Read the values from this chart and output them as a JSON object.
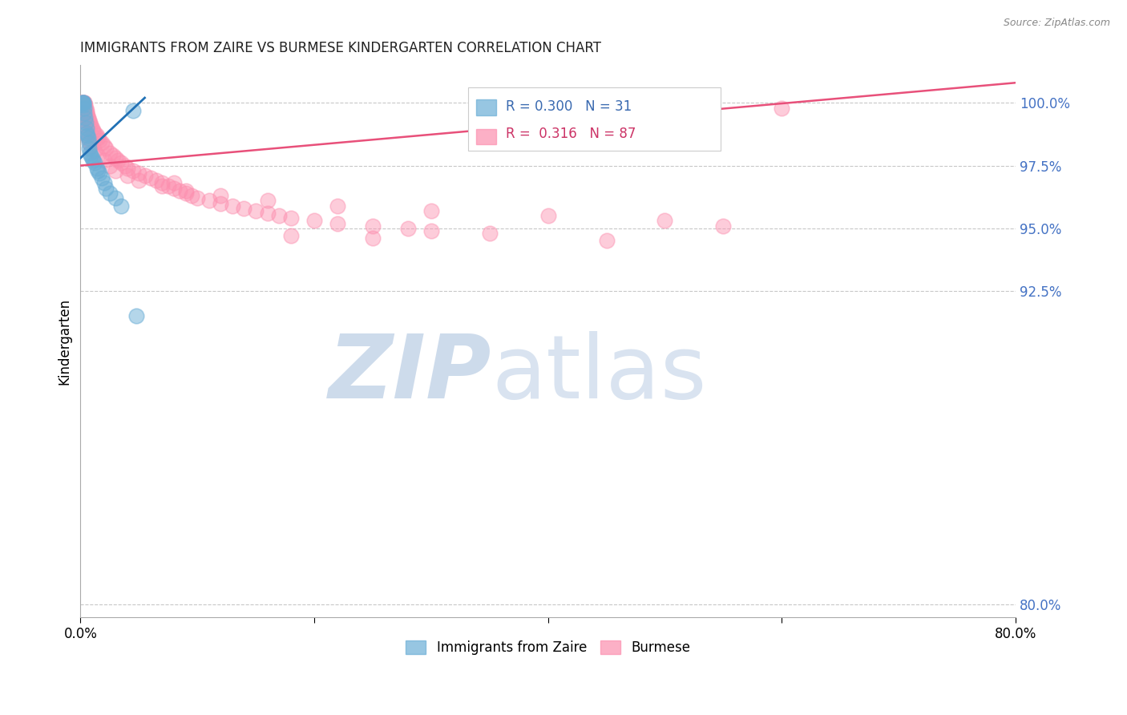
{
  "title": "IMMIGRANTS FROM ZAIRE VS BURMESE KINDERGARTEN CORRELATION CHART",
  "source": "Source: ZipAtlas.com",
  "ylabel": "Kindergarten",
  "x_range": [
    0.0,
    80.0
  ],
  "y_range": [
    79.5,
    101.5
  ],
  "y_ticks": [
    80.0,
    92.5,
    95.0,
    97.5,
    100.0
  ],
  "legend_blue_label": "Immigrants from Zaire",
  "legend_pink_label": "Burmese",
  "r_blue": 0.3,
  "n_blue": 31,
  "r_pink": 0.316,
  "n_pink": 87,
  "blue_color": "#6baed6",
  "pink_color": "#fc8faf",
  "blue_line_color": "#2171b5",
  "pink_line_color": "#e8507a",
  "blue_scatter_x": [
    0.15,
    0.18,
    0.22,
    0.25,
    0.28,
    0.3,
    0.35,
    0.4,
    0.45,
    0.5,
    0.55,
    0.6,
    0.65,
    0.7,
    0.75,
    0.8,
    0.9,
    1.0,
    1.1,
    1.2,
    1.4,
    1.5,
    1.6,
    1.8,
    2.0,
    2.2,
    2.5,
    3.0,
    3.5,
    4.5,
    4.8
  ],
  "blue_scatter_y": [
    100.0,
    100.0,
    100.0,
    100.0,
    99.9,
    99.8,
    99.6,
    99.4,
    99.2,
    99.0,
    98.8,
    98.7,
    98.6,
    98.4,
    98.2,
    98.0,
    97.9,
    97.8,
    97.7,
    97.6,
    97.4,
    97.3,
    97.2,
    97.0,
    96.8,
    96.6,
    96.4,
    96.2,
    95.9,
    99.7,
    91.5
  ],
  "pink_scatter_x": [
    0.1,
    0.15,
    0.2,
    0.25,
    0.3,
    0.35,
    0.4,
    0.45,
    0.5,
    0.55,
    0.6,
    0.65,
    0.7,
    0.8,
    0.9,
    1.0,
    1.1,
    1.2,
    1.4,
    1.5,
    1.6,
    1.8,
    2.0,
    2.2,
    2.5,
    2.8,
    3.0,
    3.2,
    3.5,
    3.8,
    4.0,
    4.5,
    5.0,
    5.5,
    6.0,
    6.5,
    7.0,
    7.5,
    8.0,
    8.5,
    9.0,
    9.5,
    10.0,
    11.0,
    12.0,
    13.0,
    14.0,
    15.0,
    16.0,
    17.0,
    18.0,
    20.0,
    22.0,
    25.0,
    28.0,
    30.0,
    35.0,
    60.0,
    0.2,
    0.3,
    0.4,
    0.5,
    0.6,
    0.7,
    0.9,
    1.2,
    1.5,
    2.0,
    2.5,
    3.0,
    4.0,
    5.0,
    7.0,
    9.0,
    12.0,
    16.0,
    22.0,
    30.0,
    40.0,
    50.0,
    55.0,
    8.0,
    18.0,
    25.0,
    45.0
  ],
  "pink_scatter_y": [
    100.0,
    100.0,
    100.0,
    100.0,
    100.0,
    100.0,
    99.9,
    99.8,
    99.7,
    99.6,
    99.5,
    99.4,
    99.3,
    99.2,
    99.1,
    99.0,
    98.9,
    98.8,
    98.7,
    98.6,
    98.5,
    98.4,
    98.3,
    98.2,
    98.0,
    97.9,
    97.8,
    97.7,
    97.6,
    97.5,
    97.4,
    97.3,
    97.2,
    97.1,
    97.0,
    96.9,
    96.8,
    96.7,
    96.6,
    96.5,
    96.4,
    96.3,
    96.2,
    96.1,
    96.0,
    95.9,
    95.8,
    95.7,
    95.6,
    95.5,
    95.4,
    95.3,
    95.2,
    95.1,
    95.0,
    94.9,
    94.8,
    99.8,
    99.5,
    99.3,
    99.1,
    98.9,
    98.7,
    98.5,
    98.3,
    98.1,
    97.9,
    97.7,
    97.5,
    97.3,
    97.1,
    96.9,
    96.7,
    96.5,
    96.3,
    96.1,
    95.9,
    95.7,
    95.5,
    95.3,
    95.1,
    96.8,
    94.7,
    94.6,
    94.5
  ]
}
